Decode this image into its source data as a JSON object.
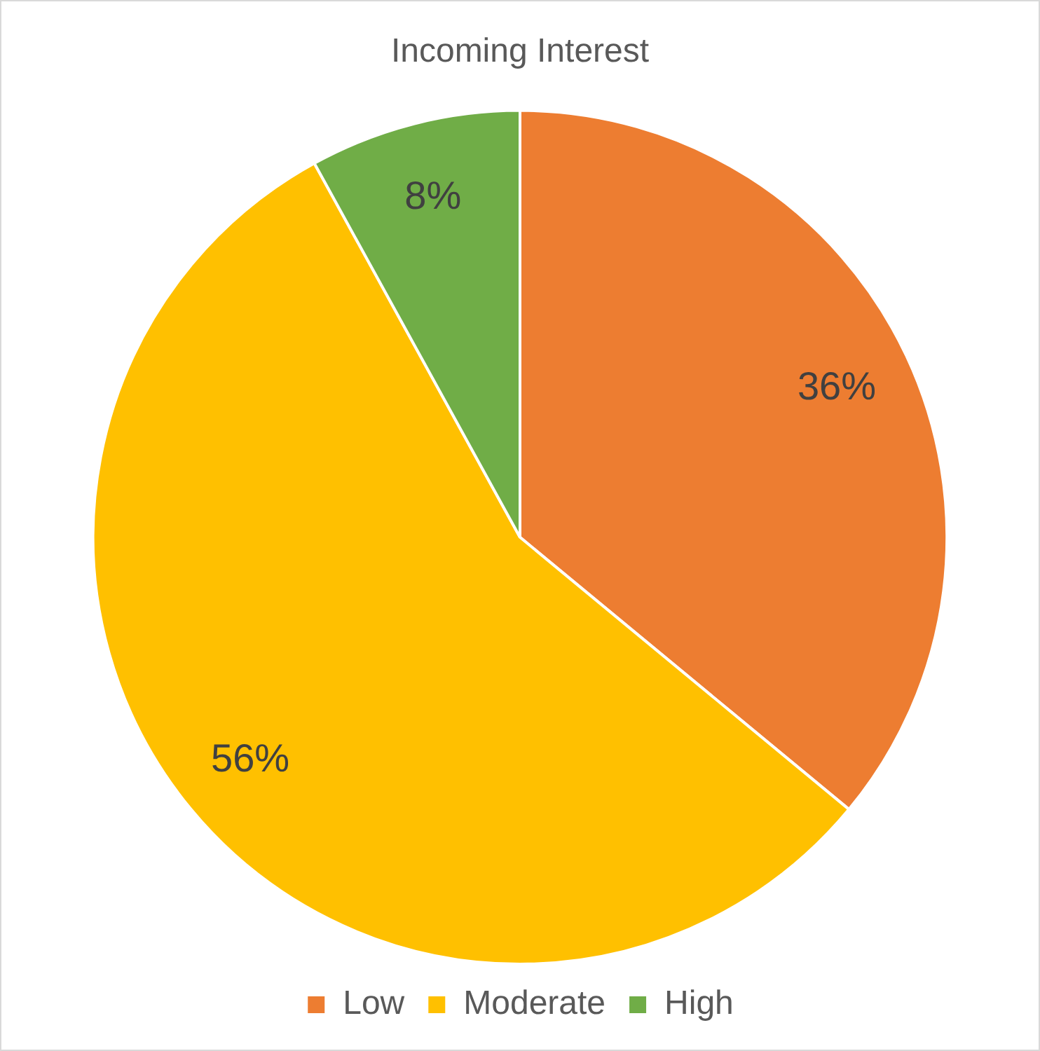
{
  "chart_data": {
    "type": "pie",
    "title": "Incoming Interest",
    "categories": [
      "Low",
      "Moderate",
      "High"
    ],
    "values": [
      36,
      56,
      8
    ],
    "colors": [
      "#ed7d31",
      "#ffc000",
      "#70ad47"
    ],
    "value_labels": [
      "36%",
      "56%",
      "8%"
    ],
    "legend": "bottom"
  }
}
